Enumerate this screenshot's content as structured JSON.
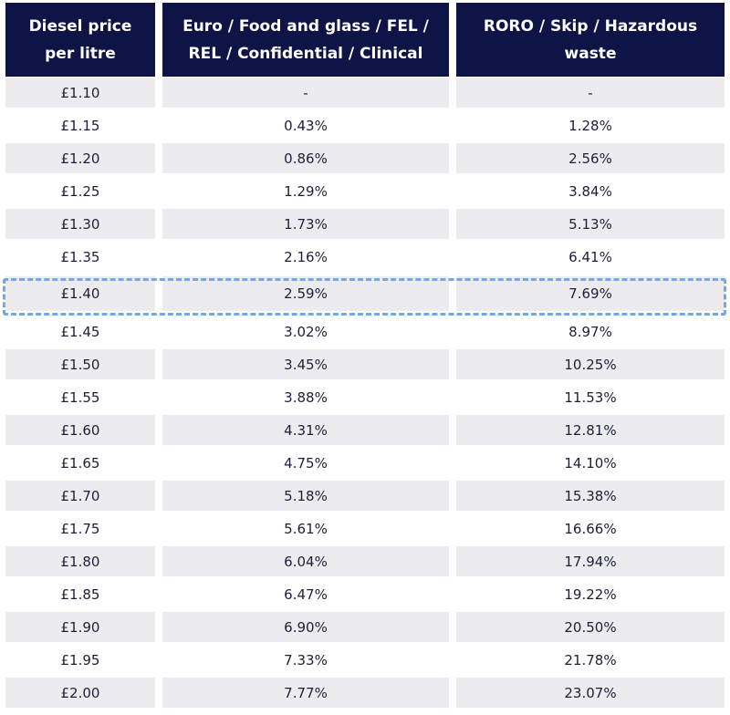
{
  "table": {
    "headers": [
      "Diesel price per litre",
      "Euro / Food and glass / FEL / REL / Confidential / Clinical",
      "RORO / Skip / Hazardous waste"
    ],
    "rows": [
      [
        "£1.10",
        "-",
        "-"
      ],
      [
        "£1.15",
        "0.43%",
        "1.28%"
      ],
      [
        "£1.20",
        "0.86%",
        "2.56%"
      ],
      [
        "£1.25",
        "1.29%",
        "3.84%"
      ],
      [
        "£1.30",
        "1.73%",
        "5.13%"
      ],
      [
        "£1.35",
        "2.16%",
        "6.41%"
      ],
      [
        "£1.40",
        "2.59%",
        "7.69%"
      ],
      [
        "£1.45",
        "3.02%",
        "8.97%"
      ],
      [
        "£1.50",
        "3.45%",
        "10.25%"
      ],
      [
        "£1.55",
        "3.88%",
        "11.53%"
      ],
      [
        "£1.60",
        "4.31%",
        "12.81%"
      ],
      [
        "£1.65",
        "4.75%",
        "14.10%"
      ],
      [
        "£1.70",
        "5.18%",
        "15.38%"
      ],
      [
        "£1.75",
        "5.61%",
        "16.66%"
      ],
      [
        "£1.80",
        "6.04%",
        "17.94%"
      ],
      [
        "£1.85",
        "6.47%",
        "19.22%"
      ],
      [
        "£1.90",
        "6.90%",
        "20.50%"
      ],
      [
        "£1.95",
        "7.33%",
        "21.78%"
      ],
      [
        "£2.00",
        "7.77%",
        "23.07%"
      ]
    ],
    "highlighted_row": "£1.40",
    "colors": {
      "header_bg": "#0f1446",
      "header_text": "#ffffff",
      "shade_bg": "#ececee",
      "highlight_border": "#6ea8ee"
    }
  }
}
